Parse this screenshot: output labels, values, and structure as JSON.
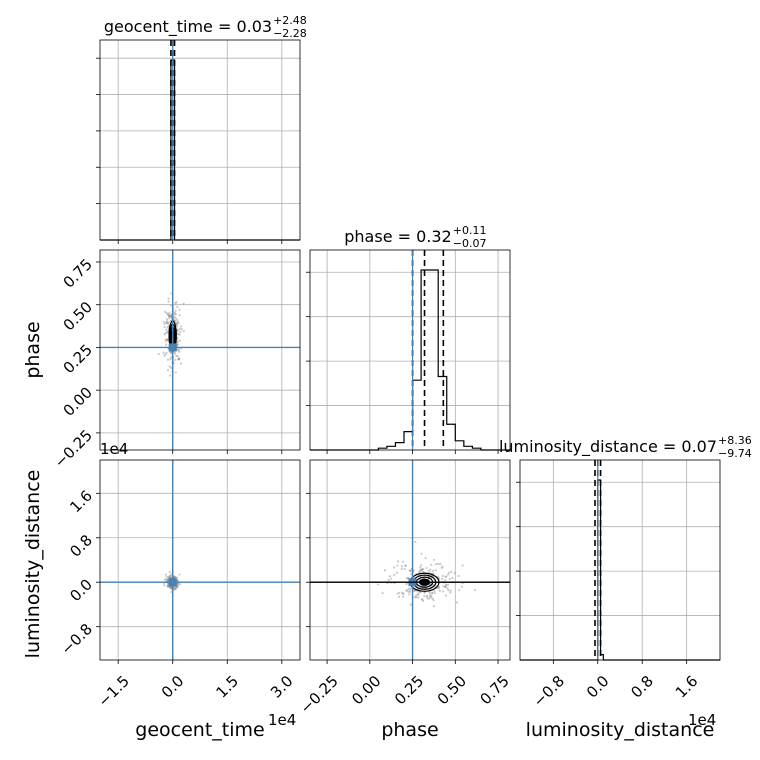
{
  "chart_data": {
    "type": "corner",
    "parameters": [
      "geocent_time",
      "phase",
      "luminosity_distance"
    ],
    "titles": [
      {
        "param": "geocent_time",
        "median": "0.03",
        "plus": "+2.48",
        "minus": "−2.28"
      },
      {
        "param": "phase",
        "median": "0.32",
        "plus": "+0.11",
        "minus": "−0.07"
      },
      {
        "param": "luminosity_distance",
        "median": "0.07",
        "plus": "+8.36",
        "minus": "−9.74"
      }
    ],
    "axis_labels": {
      "x": [
        "geocent_time",
        "phase",
        "luminosity_distance"
      ],
      "y": [
        "phase",
        "luminosity_distance"
      ]
    },
    "offset_texts": {
      "geocent_time_x": "1e4",
      "luminosity_distance_y": "1e4",
      "luminosity_distance_x": "1e4"
    },
    "ticks": {
      "geocent_time": {
        "values": [
          -1.5,
          0.0,
          1.5,
          3.0
        ],
        "labels": [
          "−1.5",
          "0.0",
          "1.5",
          "3.0"
        ],
        "range": [
          -2.0,
          3.5
        ]
      },
      "phase": {
        "values": [
          -0.25,
          0.0,
          0.25,
          0.5,
          0.75
        ],
        "labels": [
          "−0.25",
          "0.00",
          "0.25",
          "0.50",
          "0.75"
        ],
        "range": [
          -0.35,
          0.82
        ]
      },
      "luminosity_distance": {
        "values": [
          -0.8,
          0.0,
          0.8,
          1.6
        ],
        "labels": [
          "−0.8",
          "0.0",
          "0.8",
          "1.6"
        ],
        "range": [
          -1.4,
          2.2
        ]
      }
    },
    "injection": {
      "geocent_time": 0.0,
      "phase": 0.25,
      "luminosity_distance": 0.0
    },
    "quantile_lines": {
      "geocent_time": [
        -0.05,
        0.0,
        0.05
      ],
      "phase": [
        0.25,
        0.32,
        0.43
      ],
      "luminosity_distance": [
        -0.05,
        0.0,
        0.05
      ]
    },
    "histograms": {
      "geocent_time": {
        "edges": [
          -0.15,
          -0.05,
          0.05,
          0.15
        ],
        "heights": [
          0.0,
          1.0,
          0.0
        ]
      },
      "phase": {
        "edges": [
          -0.3,
          -0.25,
          -0.2,
          -0.15,
          -0.1,
          -0.05,
          0.0,
          0.05,
          0.1,
          0.15,
          0.2,
          0.25,
          0.3,
          0.35,
          0.4,
          0.45,
          0.5,
          0.55,
          0.6,
          0.65,
          0.7,
          0.75
        ],
        "heights": [
          0.0,
          0.0,
          0.0,
          0.0,
          0.0,
          0.0,
          0.0,
          0.01,
          0.02,
          0.04,
          0.1,
          0.38,
          0.98,
          0.98,
          0.4,
          0.14,
          0.05,
          0.02,
          0.01,
          0.0,
          0.0
        ]
      },
      "luminosity_distance": {
        "edges": [
          -0.05,
          0.0,
          0.05,
          0.1,
          0.15
        ],
        "heights": [
          0.0,
          1.0,
          0.03,
          0.0
        ]
      }
    },
    "grid": true
  }
}
